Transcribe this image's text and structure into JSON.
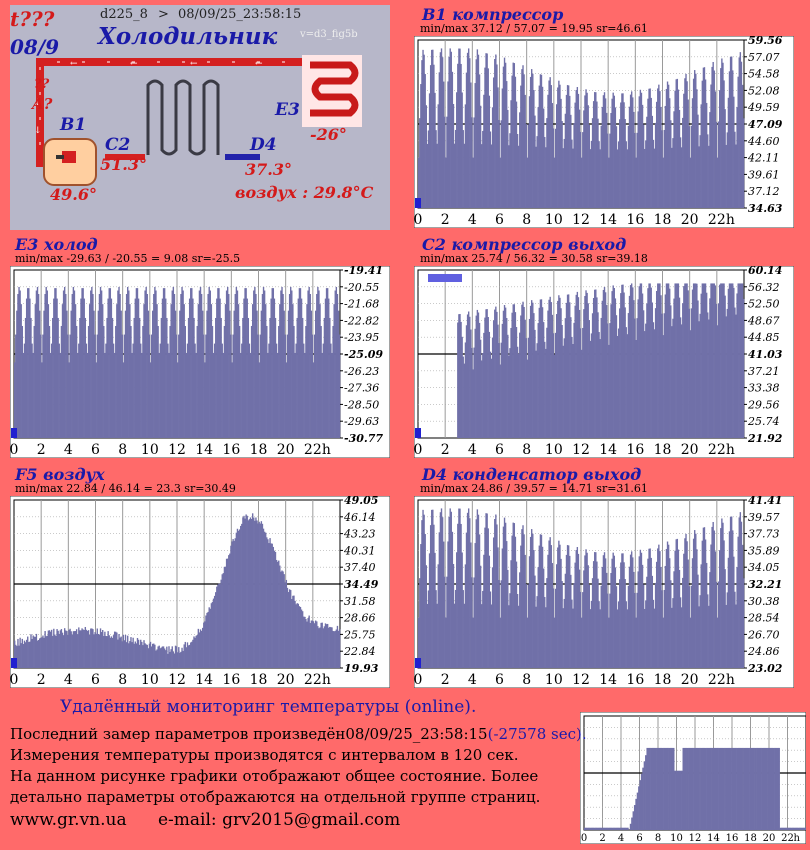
{
  "scheme": {
    "alert": "t???",
    "date": "08/9",
    "device": "d225_8",
    "arrow": ">",
    "timestamp": "08/09/25_23:58:15",
    "title": "Холодильник",
    "version": "v=d3_fig5b",
    "q1": "??",
    "q2": "A?",
    "b1_label": "B1",
    "b1_temp": "49.6°",
    "c2_label": "C2",
    "c2_temp": "51.3°",
    "d4_label": "D4",
    "d4_temp": "37.3°",
    "e3_label": "E3",
    "e3_temp": "-26°",
    "air": "воздух : 29.8°C"
  },
  "chart_data": [
    {
      "id": "b1",
      "type": "area",
      "title": "B1 компрессор",
      "minmax": "min/max   37.12 / 57.07 = 19.95     sr=46.61",
      "y_ticks": [
        "59.56",
        "57.07",
        "54.58",
        "52.08",
        "49.59",
        "47.09",
        "44.60",
        "42.11",
        "39.61",
        "37.12",
        "34.63"
      ],
      "ylim": [
        34.63,
        59.56
      ],
      "x_ticks": [
        "0",
        "2",
        "4",
        "6",
        "8",
        "10",
        "12",
        "14",
        "16",
        "18",
        "20",
        "22",
        "h"
      ],
      "min": 37.12,
      "max": 57.07,
      "mean": 46.61,
      "pattern": "cycles_valley"
    },
    {
      "id": "e3",
      "type": "area",
      "title": "E3 холод",
      "minmax": "min/max   -29.63 / -20.55 = 9.08      sr=-25.5",
      "y_ticks": [
        "-19.41",
        "-20.55",
        "-21.68",
        "-22.82",
        "-23.95",
        "-25.09",
        "-26.23",
        "-27.36",
        "-28.50",
        "-29.63",
        "-30.77"
      ],
      "ylim": [
        -30.77,
        -19.41
      ],
      "x_ticks": [
        "0",
        "2",
        "4",
        "6",
        "8",
        "10",
        "12",
        "14",
        "16",
        "18",
        "20",
        "22",
        "h"
      ],
      "min": -29.63,
      "max": -20.55,
      "mean": -25.5,
      "pattern": "cycles_flat"
    },
    {
      "id": "c2",
      "type": "area",
      "title": "C2 компрессор выход",
      "minmax": "min/max   25.74 / 56.32 = 30.58      sr=39.18",
      "y_ticks": [
        "60.14",
        "56.32",
        "52.50",
        "48.67",
        "44.85",
        "41.03",
        "37.21",
        "33.38",
        "29.56",
        "25.74",
        "21.92"
      ],
      "ylim": [
        21.92,
        60.14
      ],
      "x_ticks": [
        "0",
        "2",
        "4",
        "6",
        "8",
        "10",
        "12",
        "14",
        "16",
        "18",
        "20",
        "22",
        "h"
      ],
      "min": 25.74,
      "max": 56.32,
      "mean": 39.18,
      "pattern": "cycles_gap"
    },
    {
      "id": "f5",
      "type": "area",
      "title": "F5 воздух",
      "minmax": "min/max   22.84 / 46.14 = 23.3      sr=30.49",
      "y_ticks": [
        "49.05",
        "46.14",
        "43.23",
        "40.31",
        "37.40",
        "34.49",
        "31.58",
        "28.66",
        "25.75",
        "22.84",
        "19.93"
      ],
      "ylim": [
        19.93,
        49.05
      ],
      "x_ticks": [
        "0",
        "2",
        "4",
        "6",
        "8",
        "10",
        "12",
        "14",
        "16",
        "18",
        "20",
        "22",
        "h"
      ],
      "min": 22.84,
      "max": 46.14,
      "mean": 30.49,
      "pattern": "smooth_peak"
    },
    {
      "id": "d4",
      "type": "area",
      "title": "D4 конденсатор выход",
      "minmax": "min/max   24.86 / 39.57 = 14.71      sr=31.61",
      "y_ticks": [
        "41.41",
        "39.57",
        "37.73",
        "35.89",
        "34.05",
        "32.21",
        "30.38",
        "28.54",
        "26.70",
        "24.86",
        "23.02"
      ],
      "ylim": [
        23.02,
        41.41
      ],
      "x_ticks": [
        "0",
        "2",
        "4",
        "6",
        "8",
        "10",
        "12",
        "14",
        "16",
        "18",
        "20",
        "22",
        "h"
      ],
      "min": 24.86,
      "max": 39.57,
      "mean": 31.61,
      "pattern": "cycles_valley"
    },
    {
      "id": "mini",
      "type": "area",
      "title": "",
      "minmax": "",
      "y_ticks": [],
      "x_ticks": [
        "0",
        "2",
        "4",
        "6",
        "8",
        "10",
        "12",
        "14",
        "16",
        "18",
        "20",
        "22",
        "h"
      ],
      "pattern": "plateau"
    }
  ],
  "info": {
    "heading": "Удалённый мониторинг температуры (online).",
    "line1": "Последний замер параметров произведён08/09/25_23:58:15",
    "line1_extra": "(-27578 sec).",
    "line2": "Измерения температуры  производятся с интервалом в 120 сек.",
    "line3": "На данном рисунке графики отображают общее состояние. Более",
    "line4": "детально параметры отображаются на отдельной группе страниц.",
    "site": "www.gr.vn.ua",
    "email": "e-mail: grv2015@gmail.com"
  },
  "colors": {
    "background": "#ff6a6a",
    "fill": "#7070a8",
    "title": "#1a1aa8",
    "scheme": "#b7b7c9"
  }
}
